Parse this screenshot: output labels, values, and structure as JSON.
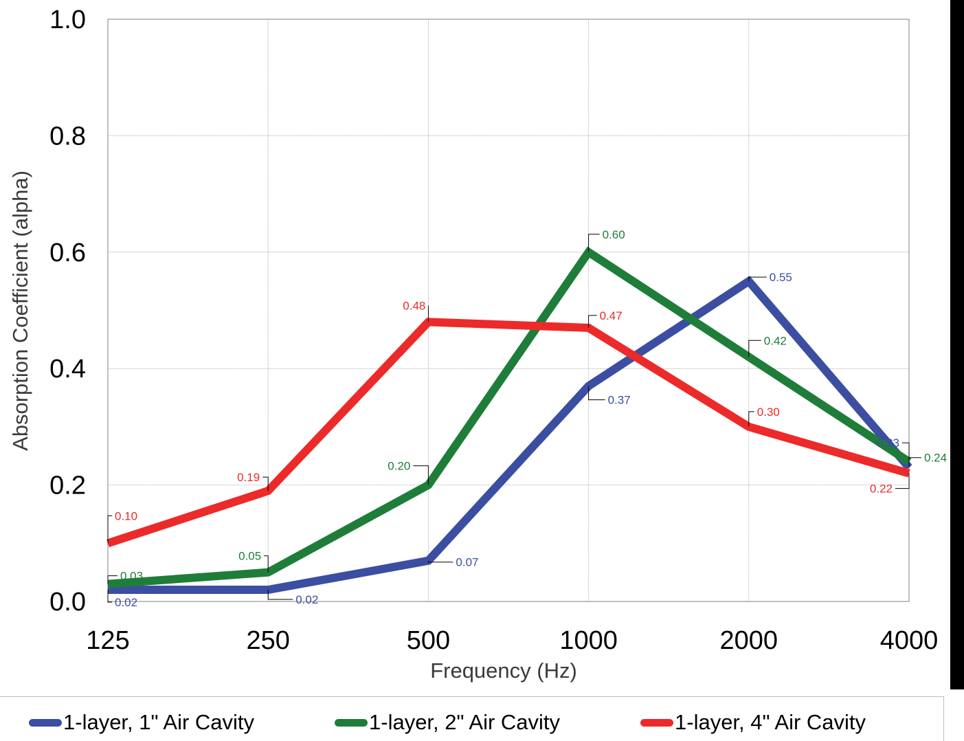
{
  "chart_data": {
    "type": "line",
    "xlabel": "Frequency (Hz)",
    "ylabel": "Absorption Coefficient (alpha)",
    "categories": [
      "125",
      "250",
      "500",
      "1000",
      "2000",
      "4000"
    ],
    "ylim": [
      0,
      1
    ],
    "yticks": [
      "0.0",
      "0.2",
      "0.4",
      "0.6",
      "0.8",
      "1.0"
    ],
    "grid": true,
    "legend_position": "bottom",
    "series": [
      {
        "name": "1-layer, 1\" Air Cavity",
        "color": "#3b4ea1",
        "values": [
          0.02,
          0.02,
          0.07,
          0.37,
          0.55,
          0.23
        ],
        "labels": [
          "0.02",
          "0.02",
          "0.07",
          "0.37",
          "0.55",
          "0.23"
        ]
      },
      {
        "name": "1-layer, 2\" Air Cavity",
        "color": "#1f7d3a",
        "values": [
          0.03,
          0.05,
          0.2,
          0.6,
          0.42,
          0.24
        ],
        "labels": [
          "0.03",
          "0.05",
          "0.20",
          "0.60",
          "0.42",
          "0.24"
        ]
      },
      {
        "name": "1-layer, 4\" Air Cavity",
        "color": "#ec2a2a",
        "values": [
          0.1,
          0.19,
          0.48,
          0.47,
          0.3,
          0.22
        ],
        "labels": [
          "0.10",
          "0.19",
          "0.48",
          "0.47",
          "0.30",
          "0.22"
        ]
      }
    ]
  }
}
